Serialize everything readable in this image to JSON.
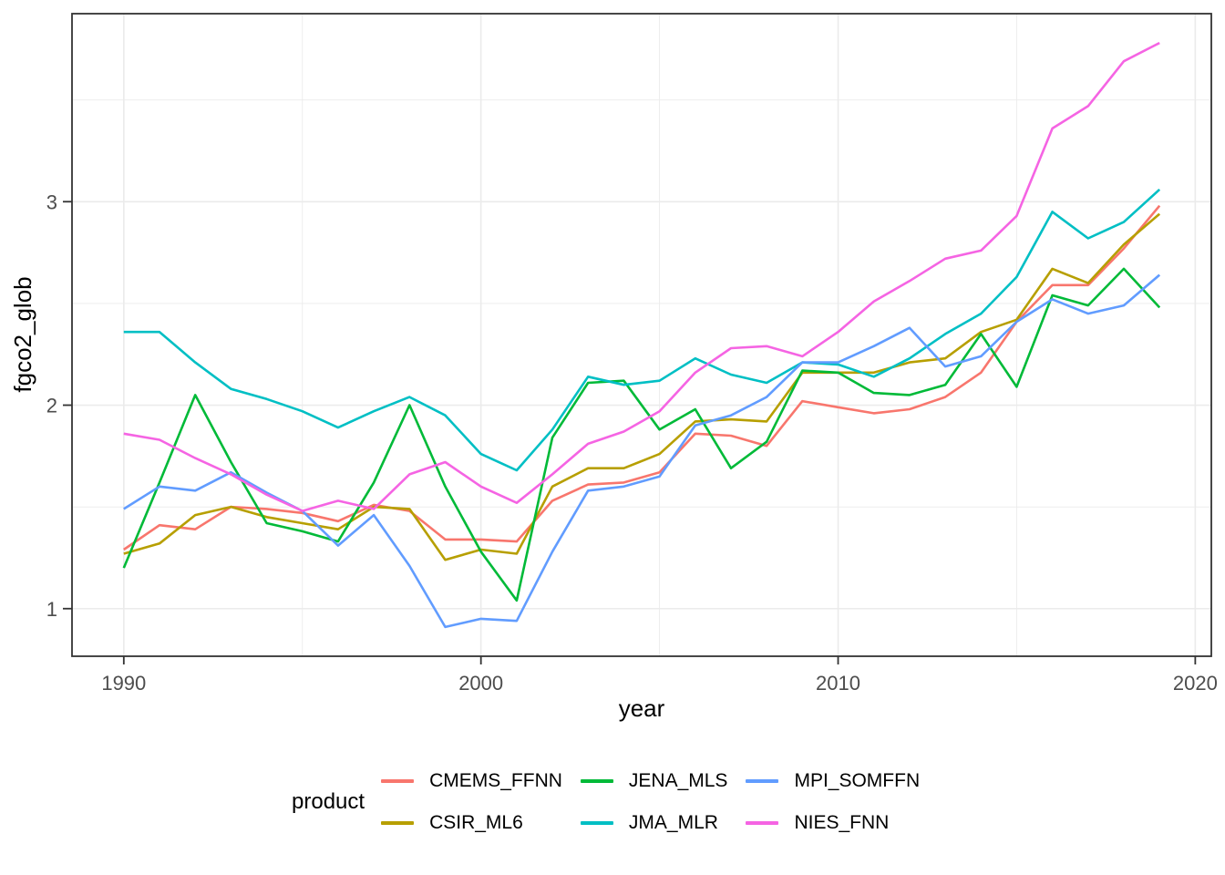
{
  "chart_data": {
    "type": "line",
    "title": "",
    "xlabel": "year",
    "ylabel": "fgco2_glob",
    "legend_title": "product",
    "legend_position": "bottom",
    "grid": true,
    "x_ticks": [
      1990,
      2000,
      2010,
      2020
    ],
    "x_minor_ticks": [
      1995,
      2005,
      2015
    ],
    "y_ticks": [
      1,
      2,
      3
    ],
    "y_minor_ticks": [
      1.5,
      2.5,
      3.5
    ],
    "x_range": [
      1988.55,
      2020.45
    ],
    "y_range": [
      0.766,
      3.924
    ],
    "x": [
      1990,
      1991,
      1992,
      1993,
      1994,
      1995,
      1996,
      1997,
      1998,
      1999,
      2000,
      2001,
      2002,
      2003,
      2004,
      2005,
      2006,
      2007,
      2008,
      2009,
      2010,
      2011,
      2012,
      2013,
      2014,
      2015,
      2016,
      2017,
      2018,
      2019
    ],
    "series": [
      {
        "name": "CMEMS_FFNN",
        "color": "#F8766D",
        "values": [
          1.29,
          1.41,
          1.39,
          1.5,
          1.49,
          1.47,
          1.43,
          1.51,
          1.48,
          1.34,
          1.34,
          1.33,
          1.53,
          1.61,
          1.62,
          1.67,
          1.86,
          1.85,
          1.8,
          2.02,
          1.99,
          1.96,
          1.98,
          2.04,
          2.16,
          2.41,
          2.59,
          2.59,
          2.77,
          2.98
        ]
      },
      {
        "name": "CSIR_ML6",
        "color": "#B79F00",
        "values": [
          1.27,
          1.32,
          1.46,
          1.5,
          1.45,
          1.42,
          1.39,
          1.5,
          1.49,
          1.24,
          1.29,
          1.27,
          1.6,
          1.69,
          1.69,
          1.76,
          1.92,
          1.93,
          1.92,
          2.16,
          2.16,
          2.16,
          2.21,
          2.23,
          2.36,
          2.42,
          2.67,
          2.6,
          2.79,
          2.94
        ]
      },
      {
        "name": "JENA_MLS",
        "color": "#00BA38",
        "values": [
          1.2,
          1.62,
          2.05,
          1.72,
          1.42,
          1.38,
          1.33,
          1.62,
          2.0,
          1.6,
          1.28,
          1.04,
          1.84,
          2.11,
          2.12,
          1.88,
          1.98,
          1.69,
          1.82,
          2.17,
          2.16,
          2.06,
          2.05,
          2.1,
          2.35,
          2.09,
          2.54,
          2.49,
          2.67,
          2.48
        ]
      },
      {
        "name": "JMA_MLR",
        "color": "#00BFC4",
        "values": [
          2.36,
          2.36,
          2.21,
          2.08,
          2.03,
          1.97,
          1.89,
          1.97,
          2.04,
          1.95,
          1.76,
          1.68,
          1.88,
          2.14,
          2.1,
          2.12,
          2.23,
          2.15,
          2.11,
          2.21,
          2.2,
          2.14,
          2.23,
          2.35,
          2.45,
          2.63,
          2.95,
          2.82,
          2.9,
          3.06
        ]
      },
      {
        "name": "MPI_SOMFFN",
        "color": "#619CFF",
        "values": [
          1.49,
          1.6,
          1.58,
          1.67,
          1.57,
          1.48,
          1.31,
          1.46,
          1.21,
          0.91,
          0.95,
          0.94,
          1.28,
          1.58,
          1.6,
          1.65,
          1.9,
          1.95,
          2.04,
          2.21,
          2.21,
          2.29,
          2.38,
          2.19,
          2.24,
          2.41,
          2.52,
          2.45,
          2.49,
          2.64
        ]
      },
      {
        "name": "NIES_FNN",
        "color": "#F564E3",
        "values": [
          1.86,
          1.83,
          1.74,
          1.66,
          1.56,
          1.48,
          1.53,
          1.49,
          1.66,
          1.72,
          1.6,
          1.52,
          1.66,
          1.81,
          1.87,
          1.97,
          2.16,
          2.28,
          2.29,
          2.24,
          2.36,
          2.51,
          2.61,
          2.72,
          2.76,
          2.93,
          3.36,
          3.47,
          3.69,
          3.78
        ]
      }
    ]
  },
  "theme": {
    "background": "#ffffff",
    "panel_border": "#333333",
    "grid_color": "#ebebeb",
    "tick_color": "#333333",
    "tick_label_color": "#4d4d4d",
    "axis_title_color": "#000000"
  }
}
